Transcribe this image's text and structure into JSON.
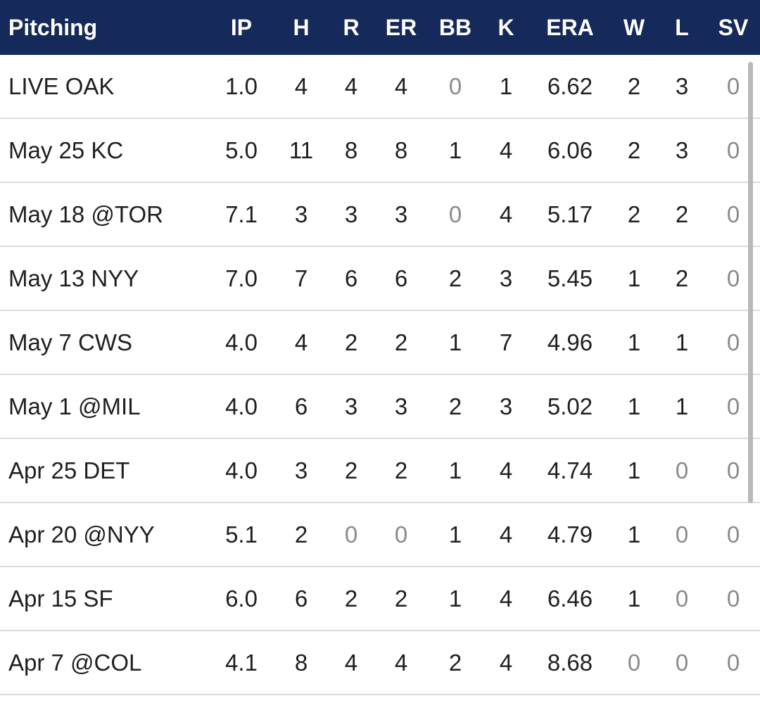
{
  "header": {
    "title": "Pitching",
    "columns": [
      "IP",
      "H",
      "R",
      "ER",
      "BB",
      "K",
      "ERA",
      "W",
      "L",
      "SV"
    ]
  },
  "rows": [
    {
      "label": "LIVE OAK",
      "ip": "1.0",
      "h": "4",
      "r": "4",
      "er": "4",
      "bb": "0",
      "k": "1",
      "era": "6.62",
      "w": "2",
      "l": "3",
      "sv": "0"
    },
    {
      "label": "May 25 KC",
      "ip": "5.0",
      "h": "11",
      "r": "8",
      "er": "8",
      "bb": "1",
      "k": "4",
      "era": "6.06",
      "w": "2",
      "l": "3",
      "sv": "0"
    },
    {
      "label": "May 18 @TOR",
      "ip": "7.1",
      "h": "3",
      "r": "3",
      "er": "3",
      "bb": "0",
      "k": "4",
      "era": "5.17",
      "w": "2",
      "l": "2",
      "sv": "0"
    },
    {
      "label": "May 13 NYY",
      "ip": "7.0",
      "h": "7",
      "r": "6",
      "er": "6",
      "bb": "2",
      "k": "3",
      "era": "5.45",
      "w": "1",
      "l": "2",
      "sv": "0"
    },
    {
      "label": "May 7 CWS",
      "ip": "4.0",
      "h": "4",
      "r": "2",
      "er": "2",
      "bb": "1",
      "k": "7",
      "era": "4.96",
      "w": "1",
      "l": "1",
      "sv": "0"
    },
    {
      "label": "May 1 @MIL",
      "ip": "4.0",
      "h": "6",
      "r": "3",
      "er": "3",
      "bb": "2",
      "k": "3",
      "era": "5.02",
      "w": "1",
      "l": "1",
      "sv": "0"
    },
    {
      "label": "Apr 25 DET",
      "ip": "4.0",
      "h": "3",
      "r": "2",
      "er": "2",
      "bb": "1",
      "k": "4",
      "era": "4.74",
      "w": "1",
      "l": "0",
      "sv": "0"
    },
    {
      "label": "Apr 20 @NYY",
      "ip": "5.1",
      "h": "2",
      "r": "0",
      "er": "0",
      "bb": "1",
      "k": "4",
      "era": "4.79",
      "w": "1",
      "l": "0",
      "sv": "0"
    },
    {
      "label": "Apr 15 SF",
      "ip": "6.0",
      "h": "6",
      "r": "2",
      "er": "2",
      "bb": "1",
      "k": "4",
      "era": "6.46",
      "w": "1",
      "l": "0",
      "sv": "0"
    },
    {
      "label": "Apr 7 @COL",
      "ip": "4.1",
      "h": "8",
      "r": "4",
      "er": "4",
      "bb": "2",
      "k": "4",
      "era": "8.68",
      "w": "0",
      "l": "0",
      "sv": "0"
    }
  ],
  "colors": {
    "header_bg": "#15295a",
    "header_text": "#ffffff",
    "text": "#1f1f1f",
    "zero_text": "#8a8a8a",
    "divider": "#dcdcdc",
    "scrollbar": "#b9b9b9"
  }
}
